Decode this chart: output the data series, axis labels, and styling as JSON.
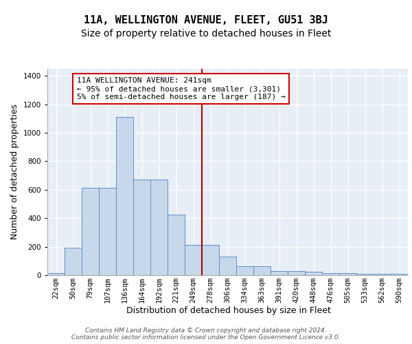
{
  "title": "11A, WELLINGTON AVENUE, FLEET, GU51 3BJ",
  "subtitle": "Size of property relative to detached houses in Fleet",
  "xlabel": "Distribution of detached houses by size in Fleet",
  "ylabel": "Number of detached properties",
  "bin_labels": [
    "22sqm",
    "50sqm",
    "79sqm",
    "107sqm",
    "136sqm",
    "164sqm",
    "192sqm",
    "221sqm",
    "249sqm",
    "278sqm",
    "306sqm",
    "334sqm",
    "363sqm",
    "391sqm",
    "420sqm",
    "448sqm",
    "476sqm",
    "505sqm",
    "533sqm",
    "562sqm",
    "590sqm"
  ],
  "bar_heights": [
    15,
    195,
    615,
    615,
    1110,
    670,
    670,
    425,
    215,
    215,
    130,
    65,
    65,
    30,
    30,
    25,
    15,
    15,
    10,
    10,
    10
  ],
  "bar_color": "#c8d8eb",
  "bar_edge_color": "#5b8fc9",
  "red_line_color": "#aa0000",
  "annotation_text": "11A WELLINGTON AVENUE: 241sqm\n← 95% of detached houses are smaller (3,301)\n5% of semi-detached houses are larger (187) →",
  "annotation_box_color": "white",
  "annotation_box_edge_color": "#cc0000",
  "ylim": [
    0,
    1450
  ],
  "yticks": [
    0,
    200,
    400,
    600,
    800,
    1000,
    1200,
    1400
  ],
  "red_line_bin": 8,
  "footer_text": "Contains HM Land Registry data © Crown copyright and database right 2024.\nContains public sector information licensed under the Open Government Licence v3.0.",
  "bg_color": "#e8eef5",
  "grid_color": "white",
  "title_fontsize": 11,
  "subtitle_fontsize": 10,
  "xlabel_fontsize": 9,
  "ylabel_fontsize": 9,
  "tick_fontsize": 7.5,
  "annotation_fontsize": 8,
  "footer_fontsize": 6.5
}
